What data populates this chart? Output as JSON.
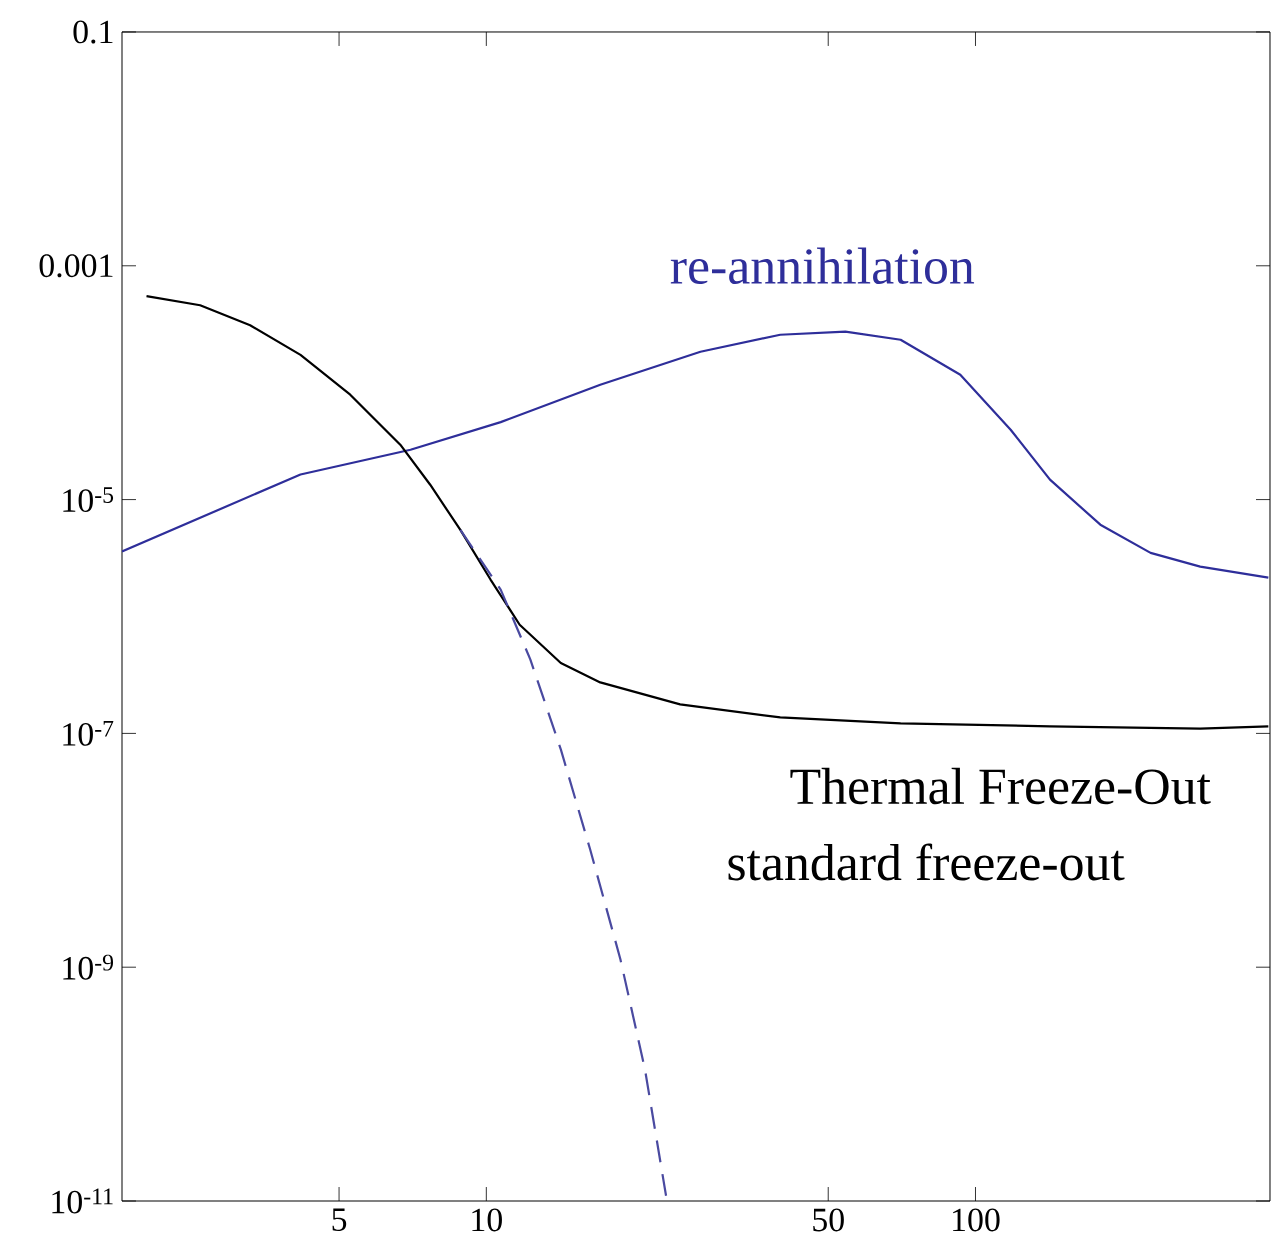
{
  "chart_data": {
    "type": "line",
    "log": "xy",
    "grid": false,
    "legend": false,
    "xlim": [
      1.8,
      400
    ],
    "ylim": [
      1e-11,
      0.1
    ],
    "xticks": [
      5,
      10,
      50,
      100
    ],
    "yticks": [
      {
        "value": 0.1,
        "label": "0.1"
      },
      {
        "value": 0.001,
        "label": "0.001"
      },
      {
        "value": 1e-05,
        "label": "10$^{-5}$"
      },
      {
        "value": 1e-07,
        "label": "10$^{-7}$"
      },
      {
        "value": 1e-09,
        "label": "10$^{-9}$"
      },
      {
        "value": 1e-11,
        "label": "10$^{-11}$"
      }
    ],
    "series": [
      {
        "name": "re-annihilation",
        "color": "#2e2e9a",
        "line_style": "solid",
        "x": [
          1.8,
          4.17,
          7.0,
          10.7,
          17.1,
          27.4,
          39.9,
          54.2,
          70.3,
          93.1,
          118,
          142,
          180,
          228,
          288,
          397
        ],
        "values": [
          3.6e-06,
          1.64e-05,
          2.67e-05,
          4.6e-05,
          9.6e-05,
          0.000184,
          0.000257,
          0.000273,
          0.000233,
          0.000117,
          3.96e-05,
          1.48e-05,
          6.1e-06,
          3.5e-06,
          2.67e-06,
          2.15e-06
        ]
      },
      {
        "color": "#000000",
        "line_style": "solid",
        "x": [
          2.02,
          2.6,
          3.29,
          4.17,
          5.27,
          6.67,
          7.68,
          8.85,
          10.2,
          11.7,
          14.2,
          17.1,
          24.9,
          39.9,
          70.3,
          142,
          288,
          397
        ],
        "values": [
          0.00055,
          0.00046,
          0.00031,
          0.000173,
          7.9e-05,
          2.95e-05,
          1.34e-05,
          5.5e-06,
          2.07e-06,
          8.5e-07,
          4e-07,
          2.73e-07,
          1.77e-07,
          1.37e-07,
          1.22e-07,
          1.15e-07,
          1.1e-07,
          1.15e-07
        ]
      },
      {
        "color": "#4a4aa0",
        "line_style": "dashed",
        "x": [
          8.85,
          10.7,
          12.3,
          14.2,
          16.3,
          18.8,
          21.1,
          23.4
        ],
        "values": [
          5.5e-06,
          1.7e-06,
          4.3e-07,
          7.3e-08,
          1.02e-08,
          1.17e-09,
          1.34e-10,
          1e-11
        ]
      }
    ],
    "annotations": [
      "Thermal Freeze-Out",
      "standard freeze-out"
    ]
  }
}
